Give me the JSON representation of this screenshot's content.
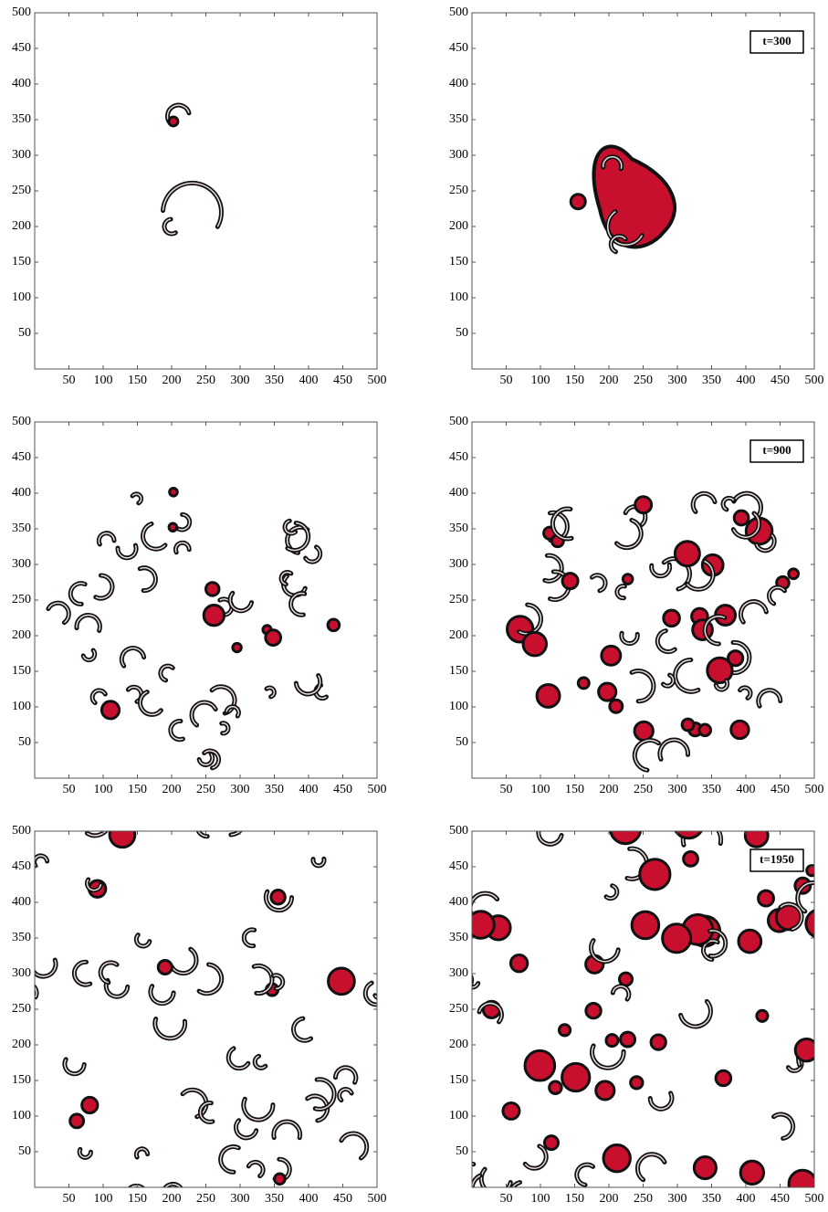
{
  "chart_data": [
    {
      "type": "image",
      "xlim": [
        0,
        500
      ],
      "ylim": [
        0,
        500
      ],
      "xticks": [
        50,
        100,
        150,
        200,
        250,
        300,
        350,
        400,
        450,
        500
      ],
      "yticks": [
        50,
        100,
        150,
        200,
        250,
        300,
        350,
        400,
        450,
        500
      ]
    },
    {
      "type": "image",
      "xlim": [
        0,
        500
      ],
      "ylim": [
        0,
        500
      ],
      "xticks": [
        50,
        100,
        150,
        200,
        250,
        300,
        350,
        400,
        450,
        500
      ],
      "yticks": [
        50,
        100,
        150,
        200,
        250,
        300,
        350,
        400,
        450,
        500
      ],
      "annotation": "t=300"
    },
    {
      "type": "image",
      "xlim": [
        0,
        500
      ],
      "ylim": [
        0,
        500
      ],
      "xticks": [
        50,
        100,
        150,
        200,
        250,
        300,
        350,
        400,
        450,
        500
      ],
      "yticks": [
        50,
        100,
        150,
        200,
        250,
        300,
        350,
        400,
        450,
        500
      ]
    },
    {
      "type": "image",
      "xlim": [
        0,
        500
      ],
      "ylim": [
        0,
        500
      ],
      "xticks": [
        50,
        100,
        150,
        200,
        250,
        300,
        350,
        400,
        450,
        500
      ],
      "yticks": [
        50,
        100,
        150,
        200,
        250,
        300,
        350,
        400,
        450,
        500
      ],
      "annotation": "t=900"
    },
    {
      "type": "image",
      "xlim": [
        0,
        500
      ],
      "ylim": [
        0,
        500
      ],
      "xticks": [
        50,
        100,
        150,
        200,
        250,
        300,
        350,
        400,
        450,
        500
      ],
      "yticks": [
        50,
        100,
        150,
        200,
        250,
        300,
        350,
        400,
        450,
        500
      ]
    },
    {
      "type": "image",
      "xlim": [
        0,
        500
      ],
      "ylim": [
        0,
        500
      ],
      "xticks": [
        50,
        100,
        150,
        200,
        250,
        300,
        350,
        400,
        450,
        500
      ],
      "yticks": [
        50,
        100,
        150,
        200,
        250,
        300,
        350,
        400,
        450,
        500
      ],
      "annotation": "t=1950"
    }
  ]
}
